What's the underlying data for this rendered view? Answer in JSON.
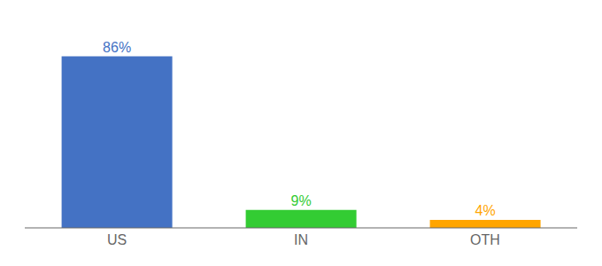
{
  "chart_data": {
    "type": "bar",
    "categories": [
      "US",
      "IN",
      "OTH"
    ],
    "values": [
      86,
      9,
      4
    ],
    "value_labels": [
      "86%",
      "9%",
      "4%"
    ],
    "colors": [
      "#4472C4",
      "#33CC33",
      "#FFA500"
    ],
    "data_labels": true,
    "ylim": [
      0,
      100
    ],
    "tick_labels": "x"
  }
}
